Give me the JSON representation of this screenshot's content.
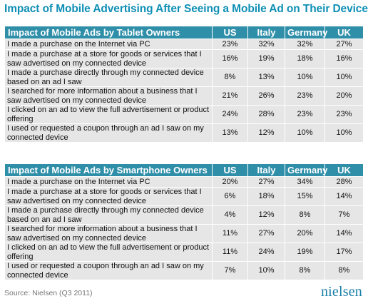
{
  "title": "Impact of Mobile Advertising After Seeing a Mobile Ad on Their Device",
  "source": "Source: Nielsen (Q3 2011)",
  "logo_text": "nielsen",
  "colors": {
    "title": "#0f8fb5",
    "header": "#2f8fa9",
    "row": "#e6e6e6"
  },
  "chart_data": {
    "type": "table",
    "title": "Impact of Mobile Advertising After Seeing a Mobile Ad on Their Device",
    "columns": [
      "US",
      "Italy",
      "Germany",
      "UK"
    ],
    "tables": [
      {
        "header": "Impact of Mobile Ads by Tablet Owners",
        "rows": [
          {
            "label": "I made a purchase on the Internet via PC",
            "values": [
              "23%",
              "32%",
              "32%",
              "27%"
            ]
          },
          {
            "label": "I made a purchase at a store for goods or services that I saw advertised on my connected device",
            "values": [
              "16%",
              "19%",
              "18%",
              "16%"
            ]
          },
          {
            "label": "I made a purchase directly through my connected device based on an ad I saw",
            "values": [
              "8%",
              "13%",
              "10%",
              "10%"
            ]
          },
          {
            "label": "I searched for more information about a business that I saw advertised on my connected device",
            "values": [
              "21%",
              "26%",
              "23%",
              "20%"
            ]
          },
          {
            "label": "I clicked on an ad to view the full advertisement or product offering",
            "values": [
              "24%",
              "28%",
              "23%",
              "23%"
            ]
          },
          {
            "label": "I used or requested a coupon through an ad I saw on my connected device",
            "values": [
              "13%",
              "12%",
              "10%",
              "10%"
            ]
          }
        ]
      },
      {
        "header": "Impact of Mobile Ads by Smartphone Owners",
        "rows": [
          {
            "label": "I made a purchase on the Internet via PC",
            "values": [
              "20%",
              "27%",
              "34%",
              "28%"
            ]
          },
          {
            "label": "I made a purchase at a store for goods or services that I saw advertised on my connected device",
            "values": [
              "6%",
              "18%",
              "15%",
              "14%"
            ]
          },
          {
            "label": "I made a purchase directly through my connected device based on an ad I saw",
            "values": [
              "4%",
              "12%",
              "8%",
              "7%"
            ]
          },
          {
            "label": "I searched for more information about a business that I saw advertised on my connected device",
            "values": [
              "11%",
              "27%",
              "20%",
              "14%"
            ]
          },
          {
            "label": "I clicked on an ad to view the full advertisement or product offering",
            "values": [
              "11%",
              "24%",
              "19%",
              "17%"
            ]
          },
          {
            "label": "I used or requested a coupon through an ad I saw on my connected device",
            "values": [
              "7%",
              "10%",
              "8%",
              "8%"
            ]
          }
        ]
      }
    ]
  }
}
